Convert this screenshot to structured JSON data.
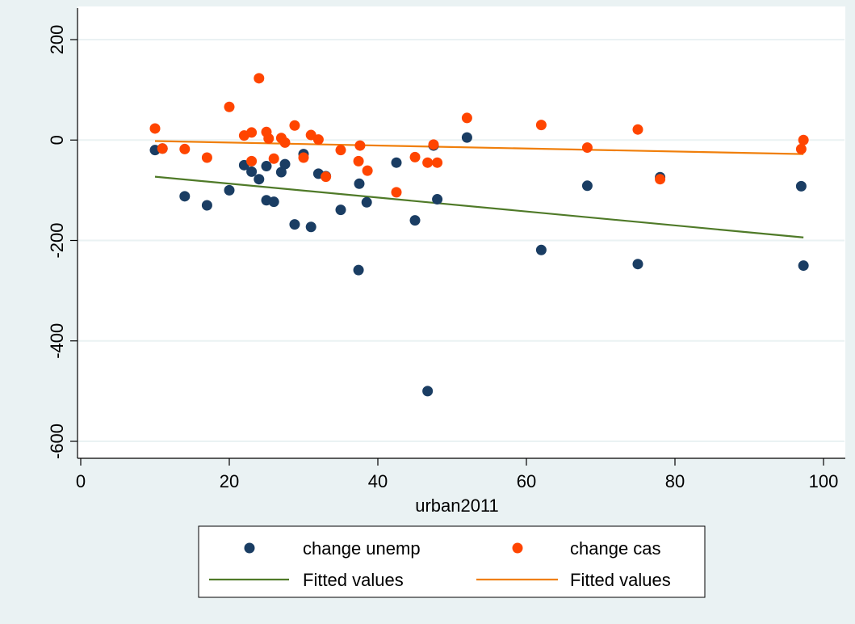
{
  "chart_data": {
    "type": "scatter",
    "title": "",
    "xlabel": "urban2011",
    "ylabel": "",
    "xlim": [
      0,
      100
    ],
    "ylim": [
      -600,
      200
    ],
    "x_ticks": [
      0,
      20,
      40,
      60,
      80,
      100
    ],
    "y_ticks": [
      -600,
      -400,
      -200,
      0,
      200
    ],
    "x_tick_labels": [
      "0",
      "20",
      "40",
      "60",
      "80",
      "100"
    ],
    "y_tick_labels": [
      "-600",
      "-400",
      "-200",
      "0",
      "200"
    ],
    "grid": true,
    "legend_position": "bottom",
    "series": [
      {
        "name": "change unemp",
        "kind": "scatter",
        "color": "#1a3d63",
        "points": [
          [
            10,
            -20
          ],
          [
            11,
            -17
          ],
          [
            14,
            -112
          ],
          [
            17,
            -130
          ],
          [
            20,
            -100
          ],
          [
            22,
            -50
          ],
          [
            23,
            -63
          ],
          [
            24,
            -78
          ],
          [
            25,
            -52
          ],
          [
            25,
            -120
          ],
          [
            26,
            -123
          ],
          [
            27,
            -64
          ],
          [
            27.5,
            -48
          ],
          [
            28.8,
            -168
          ],
          [
            30,
            -28
          ],
          [
            31,
            -173
          ],
          [
            32,
            -67
          ],
          [
            33,
            -72
          ],
          [
            35,
            -139
          ],
          [
            37.4,
            -259
          ],
          [
            37.5,
            -87
          ],
          [
            38.5,
            -124
          ],
          [
            42.5,
            -45
          ],
          [
            45,
            -160
          ],
          [
            46.7,
            -500
          ],
          [
            47.5,
            -11
          ],
          [
            48,
            -118
          ],
          [
            52,
            5
          ],
          [
            62,
            -219
          ],
          [
            68.2,
            -91
          ],
          [
            75,
            -247
          ],
          [
            78,
            -74
          ],
          [
            97,
            -92
          ],
          [
            97.3,
            -250
          ]
        ]
      },
      {
        "name": "change cas",
        "kind": "scatter",
        "color": "#ff4500",
        "points": [
          [
            10,
            23
          ],
          [
            11,
            -17
          ],
          [
            14,
            -18
          ],
          [
            17,
            -35
          ],
          [
            20,
            66
          ],
          [
            22,
            9
          ],
          [
            23,
            15
          ],
          [
            23,
            -42
          ],
          [
            24,
            123
          ],
          [
            25,
            16
          ],
          [
            25.3,
            3
          ],
          [
            26,
            -37
          ],
          [
            27,
            4
          ],
          [
            27.5,
            -5
          ],
          [
            28.8,
            29
          ],
          [
            30,
            -35
          ],
          [
            31,
            10
          ],
          [
            32,
            1
          ],
          [
            33,
            -73
          ],
          [
            35,
            -20
          ],
          [
            37.4,
            -42
          ],
          [
            37.6,
            -11
          ],
          [
            38.6,
            -61
          ],
          [
            42.5,
            -104
          ],
          [
            45,
            -34
          ],
          [
            46.7,
            -45
          ],
          [
            47.5,
            -9
          ],
          [
            48,
            -45
          ],
          [
            52,
            44
          ],
          [
            62,
            30
          ],
          [
            68.2,
            -15
          ],
          [
            75,
            21
          ],
          [
            78,
            -78
          ],
          [
            97,
            -18
          ],
          [
            97.3,
            0
          ]
        ]
      },
      {
        "name": "Fitted values",
        "kind": "line",
        "color": "#4f7a28",
        "points": [
          [
            10,
            -73
          ],
          [
            97.3,
            -194
          ]
        ]
      },
      {
        "name": "Fitted values",
        "kind": "line",
        "color": "#f07f0b",
        "points": [
          [
            10,
            -2
          ],
          [
            97.3,
            -28
          ]
        ]
      }
    ]
  }
}
